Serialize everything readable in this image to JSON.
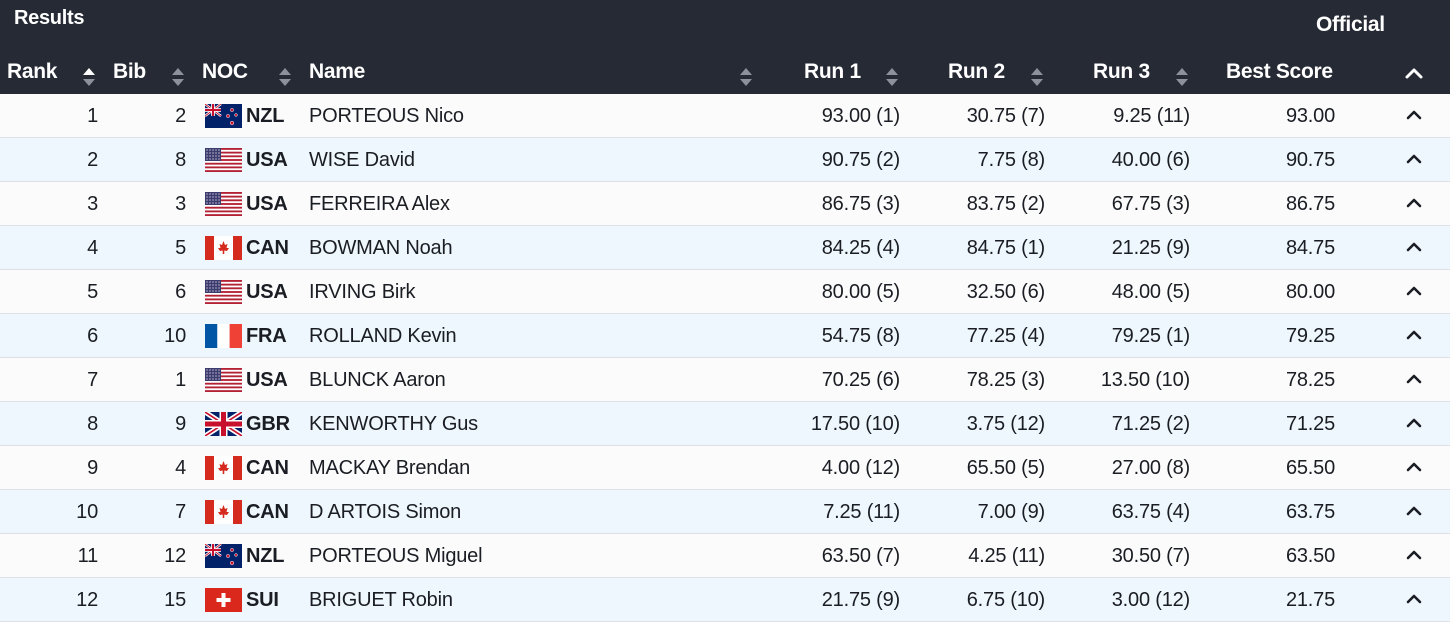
{
  "header": {
    "title": "Results",
    "status": "Official",
    "columns": {
      "rank": "Rank",
      "bib": "Bib",
      "noc": "NOC",
      "name": "Name",
      "run1": "Run 1",
      "run2": "Run 2",
      "run3": "Run 3",
      "best": "Best Score"
    }
  },
  "icons": {
    "sort": "sort-arrows-icon",
    "row_toggle": "chevron-up-icon"
  },
  "colors": {
    "header_bg": "#262a35",
    "row_odd_bg": "#fbfbfb",
    "row_even_bg": "#eef7fd",
    "sort_active": "#ffffff",
    "sort_inactive": "#8c919b"
  },
  "rows": [
    {
      "rank": "1",
      "bib": "2",
      "noc": "NZL",
      "flag": "nzl-flag-icon",
      "name": "PORTEOUS Nico",
      "run1": "93.00 (1)",
      "run2": "30.75 (7)",
      "run3": "9.25 (11)",
      "best": "93.00"
    },
    {
      "rank": "2",
      "bib": "8",
      "noc": "USA",
      "flag": "usa-flag-icon",
      "name": "WISE David",
      "run1": "90.75 (2)",
      "run2": "7.75 (8)",
      "run3": "40.00 (6)",
      "best": "90.75"
    },
    {
      "rank": "3",
      "bib": "3",
      "noc": "USA",
      "flag": "usa-flag-icon",
      "name": "FERREIRA Alex",
      "run1": "86.75 (3)",
      "run2": "83.75 (2)",
      "run3": "67.75 (3)",
      "best": "86.75"
    },
    {
      "rank": "4",
      "bib": "5",
      "noc": "CAN",
      "flag": "can-flag-icon",
      "name": "BOWMAN Noah",
      "run1": "84.25 (4)",
      "run2": "84.75 (1)",
      "run3": "21.25 (9)",
      "best": "84.75"
    },
    {
      "rank": "5",
      "bib": "6",
      "noc": "USA",
      "flag": "usa-flag-icon",
      "name": "IRVING Birk",
      "run1": "80.00 (5)",
      "run2": "32.50 (6)",
      "run3": "48.00 (5)",
      "best": "80.00"
    },
    {
      "rank": "6",
      "bib": "10",
      "noc": "FRA",
      "flag": "fra-flag-icon",
      "name": "ROLLAND Kevin",
      "run1": "54.75 (8)",
      "run2": "77.25 (4)",
      "run3": "79.25 (1)",
      "best": "79.25"
    },
    {
      "rank": "7",
      "bib": "1",
      "noc": "USA",
      "flag": "usa-flag-icon",
      "name": "BLUNCK Aaron",
      "run1": "70.25 (6)",
      "run2": "78.25 (3)",
      "run3": "13.50 (10)",
      "best": "78.25"
    },
    {
      "rank": "8",
      "bib": "9",
      "noc": "GBR",
      "flag": "gbr-flag-icon",
      "name": "KENWORTHY Gus",
      "run1": "17.50 (10)",
      "run2": "3.75 (12)",
      "run3": "71.25 (2)",
      "best": "71.25"
    },
    {
      "rank": "9",
      "bib": "4",
      "noc": "CAN",
      "flag": "can-flag-icon",
      "name": "MACKAY Brendan",
      "run1": "4.00 (12)",
      "run2": "65.50 (5)",
      "run3": "27.00 (8)",
      "best": "65.50"
    },
    {
      "rank": "10",
      "bib": "7",
      "noc": "CAN",
      "flag": "can-flag-icon",
      "name": "D ARTOIS Simon",
      "run1": "7.25 (11)",
      "run2": "7.00 (9)",
      "run3": "63.75 (4)",
      "best": "63.75"
    },
    {
      "rank": "11",
      "bib": "12",
      "noc": "NZL",
      "flag": "nzl-flag-icon",
      "name": "PORTEOUS Miguel",
      "run1": "63.50 (7)",
      "run2": "4.25 (11)",
      "run3": "30.50 (7)",
      "best": "63.50"
    },
    {
      "rank": "12",
      "bib": "15",
      "noc": "SUI",
      "flag": "sui-flag-icon",
      "name": "BRIGUET Robin",
      "run1": "21.75 (9)",
      "run2": "6.75 (10)",
      "run3": "3.00 (12)",
      "best": "21.75"
    }
  ]
}
